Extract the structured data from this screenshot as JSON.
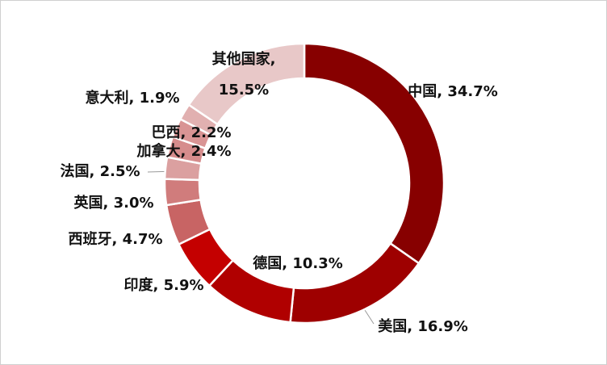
{
  "chart_data": {
    "type": "donut",
    "values": [
      34.7,
      16.9,
      10.3,
      5.9,
      4.7,
      3.0,
      2.5,
      2.4,
      2.2,
      1.9,
      15.5
    ],
    "value_labels": [
      "中国, 34.7%",
      "美国, 16.9%",
      "德国, 10.3%",
      "印度, 5.9%",
      "西班牙, 4.7%",
      "英国, 3.0%",
      "法国, 2.5%",
      "加拿大, 2.4%",
      "巴西, 2.2%",
      "意大利, 1.9%",
      "其他国家,\n15.5%"
    ],
    "colors": [
      "#870000",
      "#9e0000",
      "#b00000",
      "#c40000",
      "#c86464",
      "#d07c7c",
      "#dba0a0",
      "#d68c8c",
      "#d99494",
      "#e1b0b0",
      "#e8c8c8"
    ]
  }
}
